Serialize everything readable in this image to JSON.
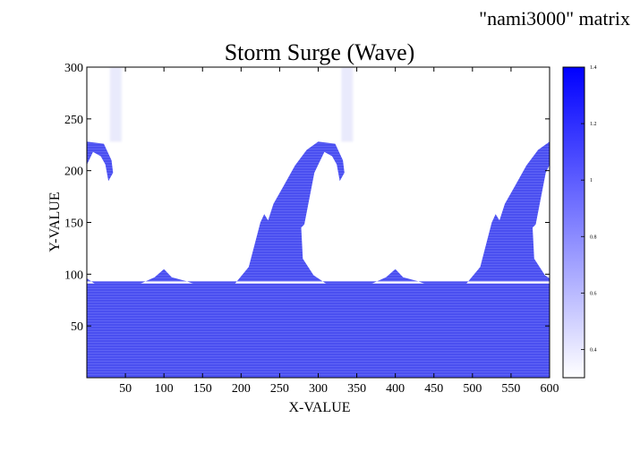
{
  "header": {
    "matrix_label": "\"nami3000\" matrix"
  },
  "chart_data": {
    "type": "heatmap",
    "title": "Storm Surge (Wave)",
    "xlabel": "X-VALUE",
    "ylabel": "Y-VALUE",
    "xlim": [
      0,
      600
    ],
    "ylim": [
      0,
      300
    ],
    "x_ticks": [
      50,
      100,
      150,
      200,
      250,
      300,
      350,
      400,
      450,
      500,
      550,
      600
    ],
    "y_ticks": [
      50,
      100,
      150,
      200,
      250,
      300
    ],
    "colorbar": {
      "range": [
        0.3,
        1.4
      ],
      "ticks": [
        0.4,
        0.6,
        0.8,
        1,
        1.2,
        1.4
      ],
      "color_low": "#ffffff",
      "color_high": "#0000ff"
    },
    "grid": false,
    "wave_period": 300,
    "wave_crests": [
      {
        "x": 0,
        "height": 228
      },
      {
        "x": 300,
        "height": 228
      },
      {
        "x": 600,
        "height": 228
      }
    ],
    "trough_level": 85,
    "typical_value": 1.0,
    "surface_value": 0.8
  }
}
